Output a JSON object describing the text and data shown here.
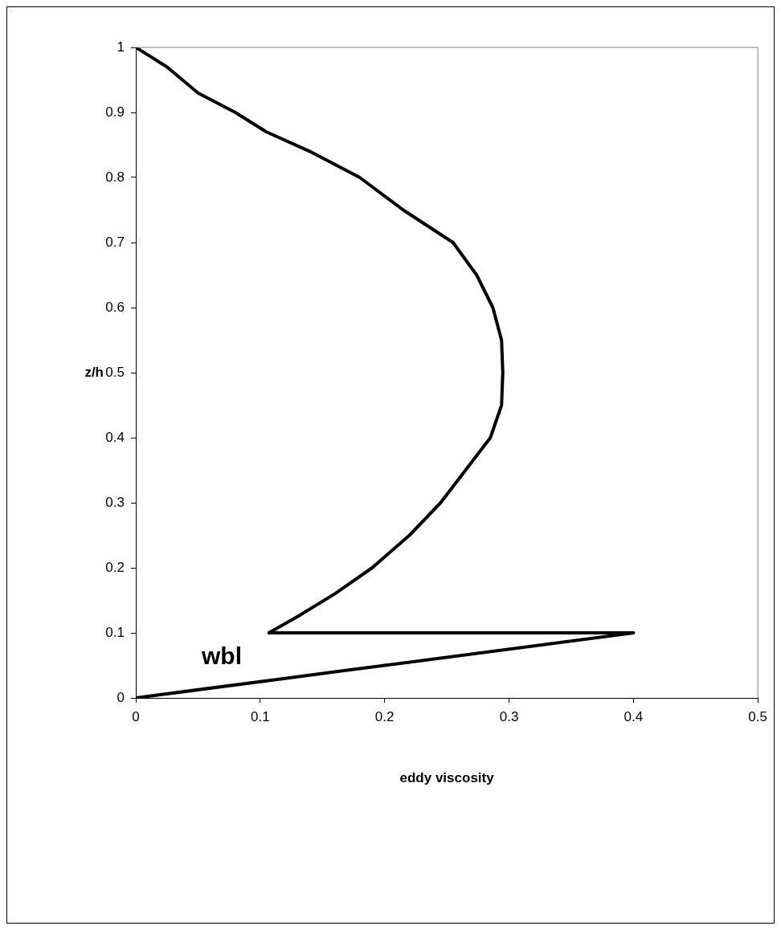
{
  "chart_data": {
    "type": "line",
    "xlabel": "eddy viscosity",
    "ylabel": "z/h",
    "series": [
      {
        "color": "#000000",
        "x": [
          0,
          0.12,
          0.16,
          0.4,
          0.107,
          0.13,
          0.16,
          0.19,
          0.22,
          0.245,
          0.265,
          0.285,
          0.294,
          0.295,
          0.294,
          0.287,
          0.274,
          0.255,
          0.215,
          0.18,
          0.14,
          0.105,
          0.08,
          0.05,
          0.025,
          0
        ],
        "values": [
          0,
          0.03,
          0.04,
          0.1,
          0.1,
          0.125,
          0.16,
          0.2,
          0.25,
          0.3,
          0.35,
          0.4,
          0.45,
          0.5,
          0.55,
          0.6,
          0.65,
          0.7,
          0.75,
          0.8,
          0.84,
          0.87,
          0.9,
          0.93,
          0.97,
          1
        ]
      }
    ],
    "xlim": [
      0,
      0.5
    ],
    "xticks": [
      0,
      0.1,
      0.2,
      0.3,
      0.4,
      0.5
    ],
    "ylim": [
      0,
      1
    ],
    "yticks": [
      0,
      0.1,
      0.2,
      0.3,
      0.4,
      0.5,
      0.6,
      0.7,
      0.8,
      0.9,
      1
    ],
    "annotations": [
      "wbl"
    ],
    "grid": false,
    "legend": false,
    "marker": "none",
    "line_style": "solid"
  }
}
